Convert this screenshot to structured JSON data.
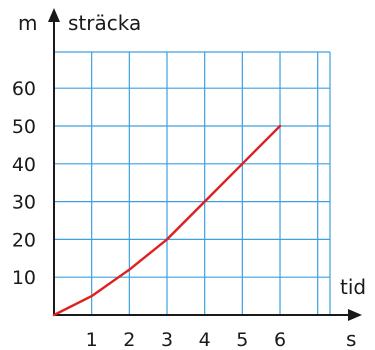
{
  "chart_data": {
    "type": "line",
    "x": [
      0,
      1,
      2,
      3,
      4,
      5,
      6
    ],
    "series": [
      {
        "values": [
          0,
          5,
          12,
          20,
          30,
          40,
          50
        ],
        "color": "#e02020"
      }
    ],
    "x_ticks": [
      "1",
      "2",
      "3",
      "4",
      "5",
      "6"
    ],
    "y_ticks": [
      "10",
      "20",
      "30",
      "40",
      "50",
      "60"
    ],
    "x_tick_values": [
      1,
      2,
      3,
      4,
      5,
      6
    ],
    "y_tick_values": [
      10,
      20,
      30,
      40,
      50,
      60
    ],
    "xlabel": "tid",
    "xunit": "s",
    "ylabel": "sträcka",
    "yunit": "m",
    "xlim": [
      0,
      7.3
    ],
    "ylim": [
      0,
      72
    ],
    "grid": true,
    "grid_color": "#3ea0e0",
    "axis_color": "#1a1a1a"
  }
}
